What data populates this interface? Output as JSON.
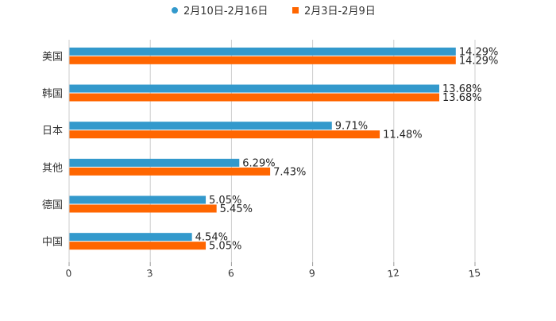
{
  "chart_data": {
    "type": "bar",
    "orientation": "horizontal",
    "title": "",
    "xlabel": "",
    "ylabel": "",
    "categories": [
      "美国",
      "韩国",
      "日本",
      "其他",
      "德国",
      "中国"
    ],
    "series": [
      {
        "name": "2月10日-2月16日",
        "color": "#3399cc",
        "values": [
          14.29,
          13.68,
          9.71,
          6.29,
          5.05,
          4.54
        ],
        "labels": [
          "14.29%",
          "13.68%",
          "9.71%",
          "6.29%",
          "5.05%",
          "4.54%"
        ]
      },
      {
        "name": "2月3日-2月9日",
        "color": "#ff6600",
        "values": [
          14.29,
          13.68,
          11.48,
          7.43,
          5.45,
          5.05
        ],
        "labels": [
          "14.29%",
          "13.68%",
          "11.48%",
          "7.43%",
          "5.45%",
          "5.05%"
        ]
      }
    ],
    "xlim": [
      0,
      15
    ],
    "xticks": [
      "0",
      "3",
      "6",
      "9",
      "12",
      "15"
    ],
    "grid": "vertical",
    "legend": "top-center"
  }
}
